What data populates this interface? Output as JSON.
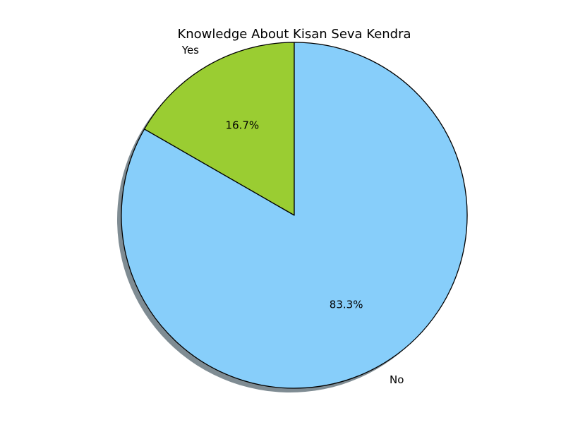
{
  "chart_data": {
    "type": "pie",
    "title": "Knowledge About Kisan Seva Kendra",
    "shadow": true,
    "start_angle_deg": 90,
    "direction": "counterclockwise",
    "slices": [
      {
        "label": "Yes",
        "value": 16.7,
        "pct_label": "16.7%",
        "color": "#9acd32"
      },
      {
        "label": "No",
        "value": 83.3,
        "pct_label": "83.3%",
        "color": "#87cefa"
      }
    ],
    "edge_color": "#000000",
    "shadow_color": "#7f8c93"
  }
}
